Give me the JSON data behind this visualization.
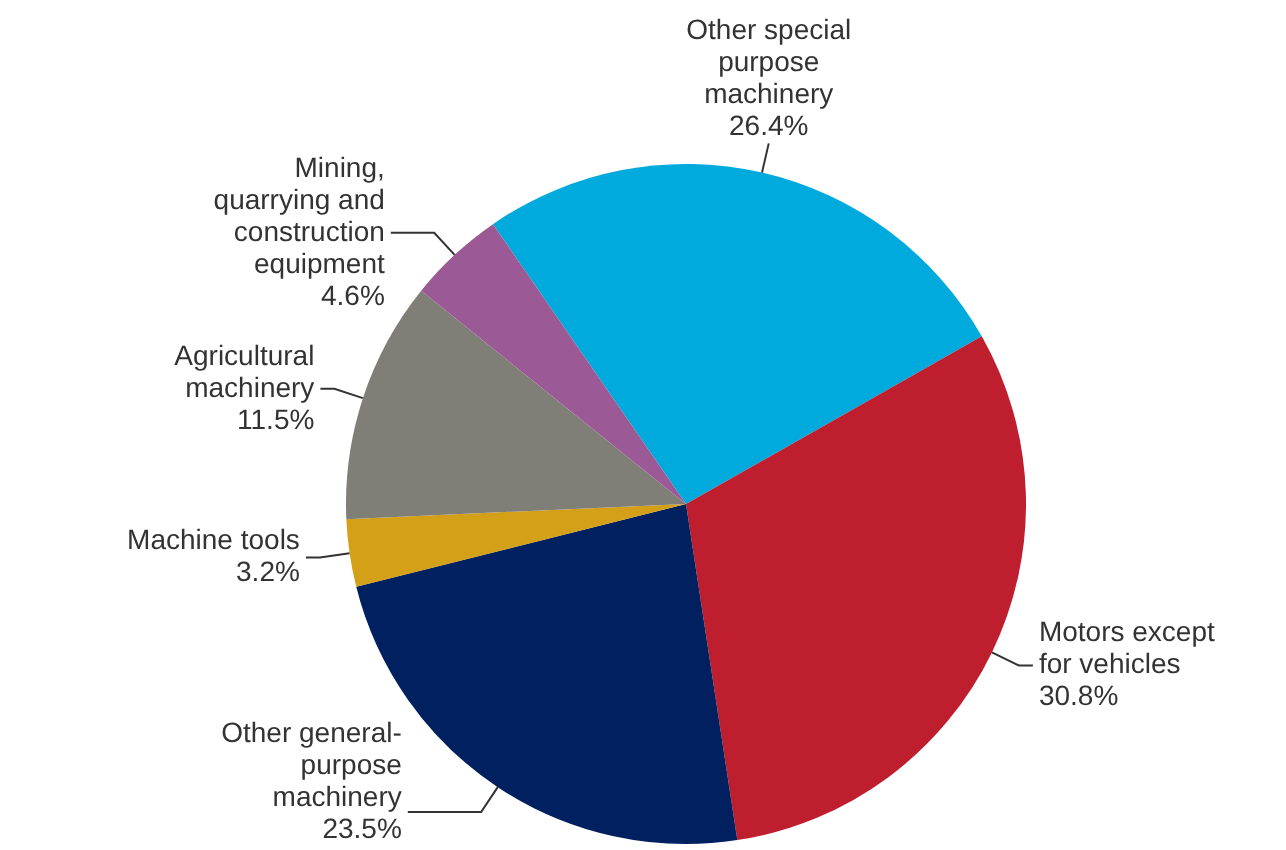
{
  "chart_data": {
    "type": "pie",
    "categories": [
      "Other special purpose machinery",
      "Motors except for vehicles",
      "Other general-purpose machinery",
      "Machine tools",
      "Agricultural machinery",
      "Mining, quarrying and construction equipment"
    ],
    "values": [
      26.4,
      30.8,
      23.5,
      3.2,
      11.5,
      4.6
    ],
    "colors": [
      "#00aadd",
      "#be1e2d",
      "#002060",
      "#d4a017",
      "#7f7f78",
      "#9b5a96"
    ],
    "value_labels": [
      "26.4%",
      "30.8%",
      "23.5%",
      "3.2%",
      "11.5%",
      "4.6%"
    ],
    "legend": false
  }
}
